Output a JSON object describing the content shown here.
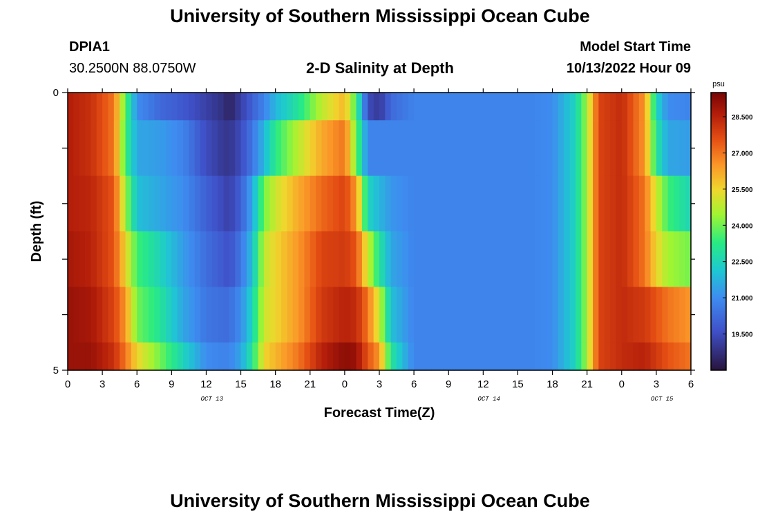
{
  "page_title": "University of Southern Mississippi Ocean Cube",
  "footer_title": "University of Southern Mississippi Ocean Cube",
  "station": {
    "id": "DPIA1",
    "coords": "30.2500N  88.0750W"
  },
  "chart_title": "2-D Salinity at Depth",
  "model_start": {
    "label": "Model Start Time",
    "value": "10/13/2022 Hour 09"
  },
  "chart_data": {
    "type": "heatmap",
    "title": "2-D Salinity at Depth",
    "xlabel": "Forecast Time(Z)",
    "ylabel": "Depth (ft)",
    "x_range": [
      0,
      54
    ],
    "x_unit": "hours from 10/13/2022 00Z",
    "x_ticks": [
      0,
      3,
      6,
      9,
      12,
      15,
      18,
      21,
      24,
      27,
      30,
      33,
      36,
      39,
      42,
      45,
      48,
      51,
      54
    ],
    "x_tick_labels": [
      "0",
      "3",
      "6",
      "9",
      "12",
      "15",
      "18",
      "21",
      "0",
      "3",
      "6",
      "9",
      "12",
      "15",
      "18",
      "21",
      "0",
      "3",
      "6"
    ],
    "date_labels": [
      {
        "hour": 12.5,
        "text": "OCT 13"
      },
      {
        "hour": 36.5,
        "text": "OCT 14"
      },
      {
        "hour": 51.5,
        "text": "OCT 15"
      }
    ],
    "y_range": [
      0,
      5
    ],
    "y_ticks": [
      0,
      1,
      2,
      3,
      4,
      5
    ],
    "y_tick_labels": [
      "0",
      "",
      "",
      "",
      "",
      "5"
    ],
    "depth_bins": [
      {
        "top": 0,
        "bottom": 0.5
      },
      {
        "top": 0.5,
        "bottom": 1.5
      },
      {
        "top": 1.5,
        "bottom": 2.5
      },
      {
        "top": 2.5,
        "bottom": 3.5
      },
      {
        "top": 3.5,
        "bottom": 4.5
      },
      {
        "top": 4.5,
        "bottom": 5
      }
    ],
    "time_hours": [
      0,
      2,
      4,
      5,
      6,
      8,
      10,
      12,
      13.5,
      14,
      15,
      16,
      17,
      18,
      20,
      22,
      24,
      25,
      26,
      27,
      28,
      30,
      32,
      34,
      36,
      38,
      40,
      42,
      44,
      45,
      46,
      48,
      50,
      51,
      52,
      54
    ],
    "salinity": [
      [
        28.6,
        28.2,
        27.0,
        23.8,
        21.0,
        20.2,
        19.8,
        19.2,
        18.8,
        18.4,
        19.2,
        20.0,
        20.8,
        21.8,
        23.0,
        24.8,
        26.0,
        23.5,
        19.5,
        19.0,
        20.2,
        20.8,
        20.8,
        20.8,
        20.8,
        20.8,
        20.8,
        21.0,
        22.5,
        24.5,
        27.8,
        28.3,
        26.5,
        22.5,
        21.0,
        20.8
      ],
      [
        28.6,
        28.2,
        27.0,
        23.5,
        21.5,
        21.3,
        20.8,
        19.5,
        19.0,
        18.9,
        19.5,
        20.5,
        21.8,
        23.2,
        24.8,
        26.2,
        27.0,
        24.0,
        20.8,
        20.8,
        20.8,
        20.8,
        20.8,
        20.8,
        20.8,
        20.8,
        20.8,
        21.0,
        22.5,
        24.5,
        27.8,
        28.3,
        26.5,
        23.0,
        21.5,
        21.3
      ],
      [
        28.6,
        28.4,
        27.5,
        24.5,
        22.0,
        21.5,
        21.0,
        20.0,
        19.4,
        19.2,
        20.0,
        21.5,
        24.0,
        25.0,
        26.2,
        27.2,
        27.8,
        26.5,
        22.5,
        21.8,
        21.2,
        20.8,
        20.8,
        20.8,
        20.8,
        20.8,
        20.8,
        21.0,
        22.5,
        24.5,
        27.8,
        28.3,
        27.0,
        25.0,
        23.5,
        22.5
      ],
      [
        28.8,
        28.5,
        27.5,
        25.5,
        23.5,
        22.5,
        21.3,
        20.3,
        19.8,
        19.6,
        20.5,
        22.0,
        24.8,
        25.5,
        26.5,
        27.8,
        28.0,
        27.5,
        25.0,
        23.0,
        21.5,
        20.8,
        20.8,
        20.8,
        20.8,
        20.8,
        20.8,
        21.0,
        22.5,
        24.5,
        27.8,
        28.3,
        27.0,
        25.5,
        24.5,
        24.0
      ],
      [
        29.0,
        28.8,
        27.8,
        26.5,
        24.0,
        23.0,
        21.5,
        20.5,
        20.3,
        20.3,
        21.0,
        22.5,
        25.0,
        25.5,
        26.5,
        28.0,
        28.5,
        28.3,
        27.0,
        25.0,
        22.0,
        20.8,
        20.8,
        20.8,
        20.8,
        20.8,
        20.8,
        21.0,
        22.5,
        24.5,
        27.8,
        28.3,
        28.0,
        27.5,
        27.0,
        26.5
      ],
      [
        29.0,
        29.0,
        28.2,
        27.0,
        25.5,
        24.0,
        22.5,
        21.0,
        20.8,
        20.8,
        21.5,
        23.0,
        25.5,
        26.0,
        27.0,
        28.5,
        29.2,
        29.0,
        27.5,
        26.5,
        23.0,
        20.8,
        20.8,
        20.8,
        20.8,
        20.8,
        20.8,
        21.0,
        22.5,
        24.5,
        27.8,
        28.3,
        28.5,
        28.0,
        27.5,
        27.0
      ]
    ],
    "colorbar": {
      "unit": "psu",
      "min": 18.0,
      "max": 29.5,
      "ticks": [
        19.5,
        21.0,
        22.5,
        24.0,
        25.5,
        27.0,
        28.5
      ],
      "tick_labels": [
        "19.500",
        "21.000",
        "22.500",
        "24.000",
        "25.500",
        "27.000",
        "28.500"
      ]
    }
  }
}
